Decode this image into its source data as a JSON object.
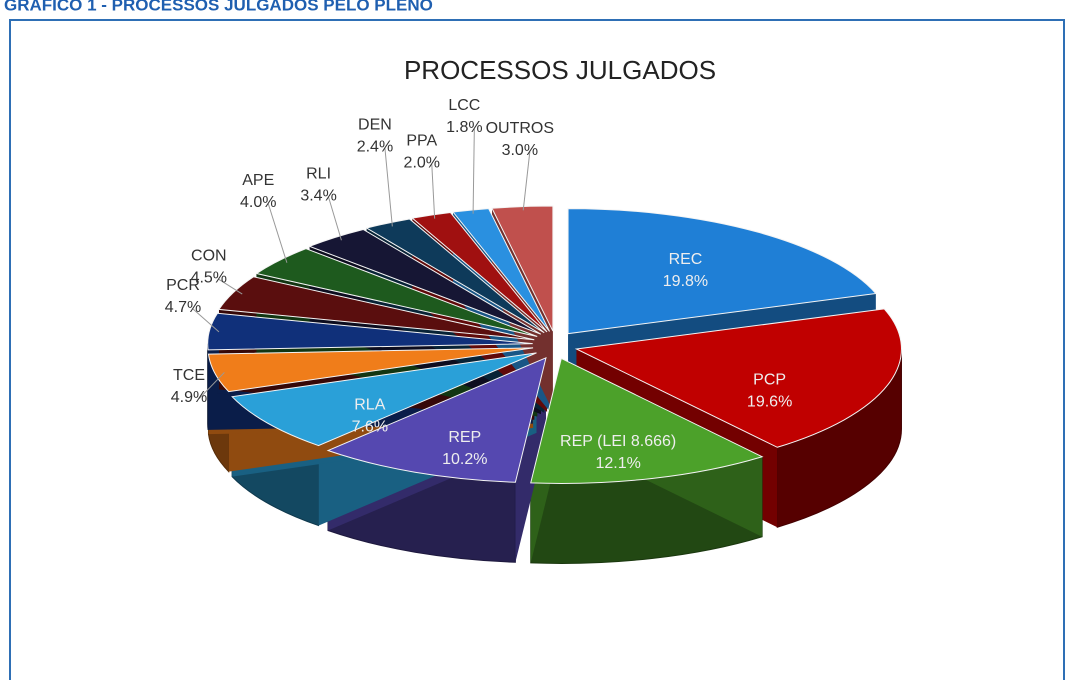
{
  "header": "GRÁFICO 1 - PROCESSOS JULGADOS PELO PLENO",
  "chart_data": {
    "type": "pie",
    "title": "PROCESSOS JULGADOS",
    "categories": [
      "REC",
      "PCP",
      "REP (LEI 8.666)",
      "REP",
      "RLA",
      "TCE",
      "PCR",
      "CON",
      "APE",
      "RLI",
      "DEN",
      "PPA",
      "LCC",
      "OUTROS"
    ],
    "values": [
      19.8,
      19.6,
      12.1,
      10.2,
      7.6,
      4.9,
      4.7,
      4.5,
      4.0,
      3.4,
      2.4,
      2.0,
      1.8,
      3.0
    ],
    "value_labels": [
      "19.8%",
      "19.6%",
      "12.1%",
      "10.2%",
      "7.6%",
      "4.9%",
      "4.7%",
      "4.5%",
      "4.0%",
      "3.4%",
      "2.4%",
      "2.0%",
      "1.8%",
      "3.0%"
    ],
    "colors": [
      "#1f7fd6",
      "#c00000",
      "#4ca12a",
      "#5548b0",
      "#2aa0d8",
      "#f07d1a",
      "#10307a",
      "#5a0e0e",
      "#1e5a1e",
      "#161634",
      "#0e3a5a",
      "#a01010",
      "#2a90e0",
      "#c0504d"
    ]
  }
}
